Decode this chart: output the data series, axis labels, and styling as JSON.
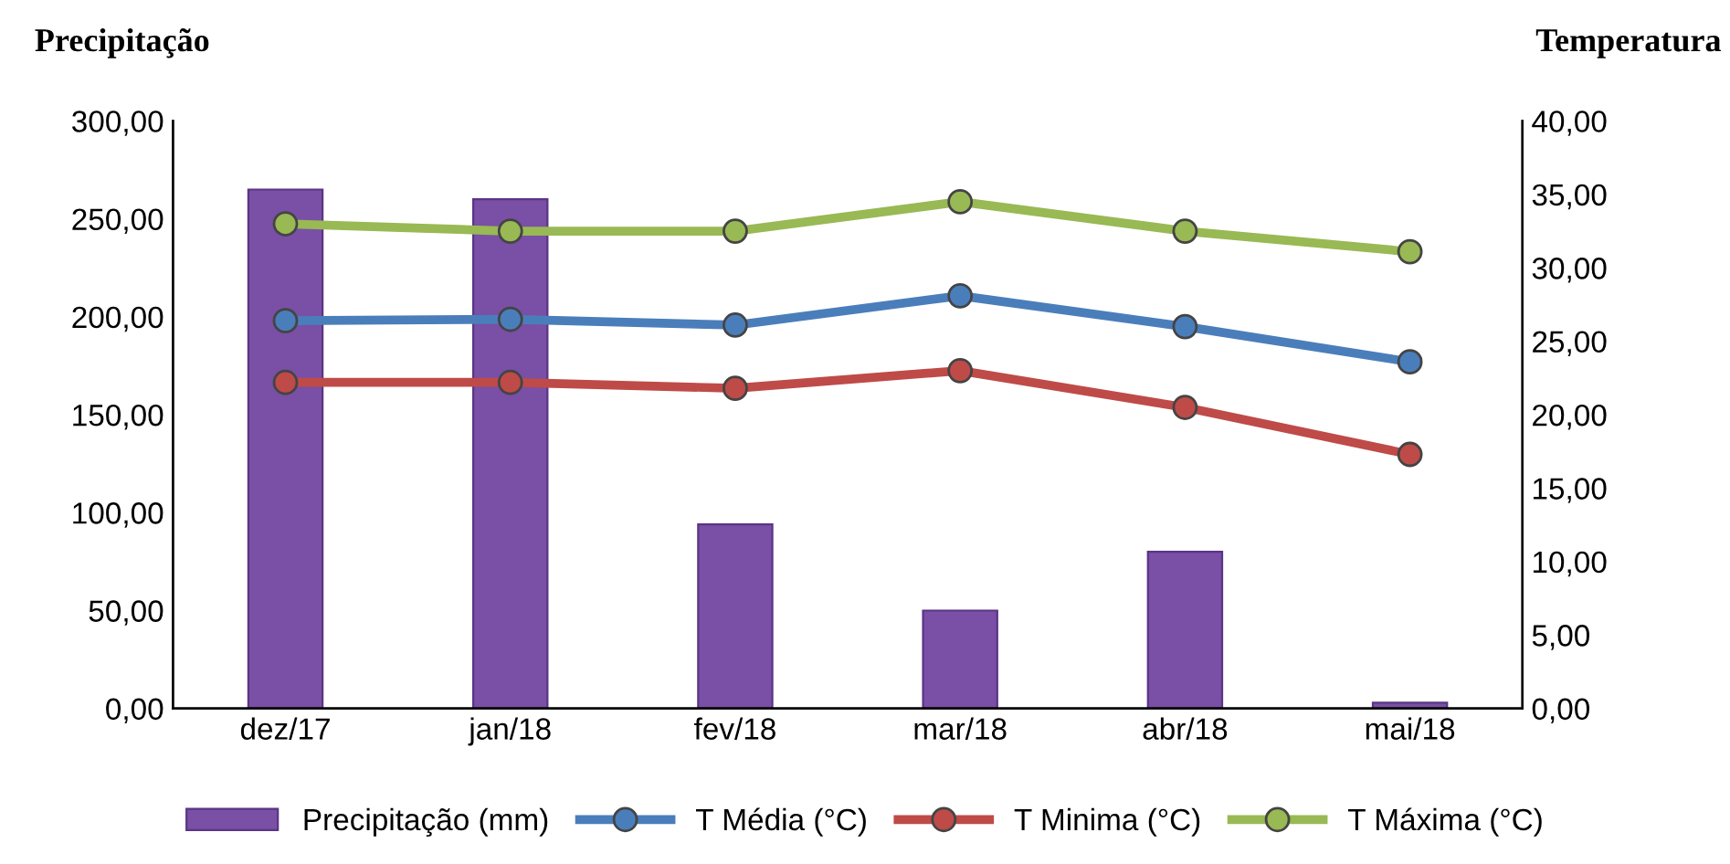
{
  "chart_data": {
    "type": "bar",
    "ylabel": "Precipitação",
    "y2label": "Temperatura",
    "categories": [
      "dez/17",
      "jan/18",
      "fev/18",
      "mar/18",
      "abr/18",
      "mai/18"
    ],
    "series": [
      {
        "name": "Precipitação (mm)",
        "color": "#7a4fa6",
        "values": [
          265,
          260,
          94,
          50,
          80,
          3
        ]
      },
      {
        "name": "T Média (°C)",
        "type": "line",
        "axis": "y2",
        "color": "#4a7ebb",
        "values": [
          26.4,
          26.5,
          26.1,
          28.1,
          26.0,
          23.6
        ]
      },
      {
        "name": "T Minima (°C)",
        "type": "line",
        "axis": "y2",
        "color": "#be4b48",
        "values": [
          22.2,
          22.2,
          21.8,
          23.0,
          20.5,
          17.3
        ]
      },
      {
        "name": "T Máxima (°C)",
        "type": "line",
        "axis": "y2",
        "color": "#98b954",
        "values": [
          33.0,
          32.5,
          32.5,
          34.5,
          32.5,
          31.1
        ]
      }
    ],
    "ylim": [
      0,
      300
    ],
    "yticks": [
      {
        "value": 0,
        "label": "0,00"
      },
      {
        "value": 50,
        "label": "50,00"
      },
      {
        "value": 100,
        "label": "100,00"
      },
      {
        "value": 150,
        "label": "150,00"
      },
      {
        "value": 200,
        "label": "200,00"
      },
      {
        "value": 250,
        "label": "250,00"
      },
      {
        "value": 300,
        "label": "300,00"
      }
    ],
    "y2lim": [
      0,
      40
    ],
    "y2ticks": [
      {
        "value": 0,
        "label": "0,00"
      },
      {
        "value": 5,
        "label": "5,00"
      },
      {
        "value": 10,
        "label": "10,00"
      },
      {
        "value": 15,
        "label": "15,00"
      },
      {
        "value": 20,
        "label": "20,00"
      },
      {
        "value": 25,
        "label": "25,00"
      },
      {
        "value": 30,
        "label": "30,00"
      },
      {
        "value": 35,
        "label": "35,00"
      },
      {
        "value": 40,
        "label": "40,00"
      }
    ],
    "marker": "circle",
    "line_style": "solid",
    "legend": "bottom",
    "grid": false
  }
}
